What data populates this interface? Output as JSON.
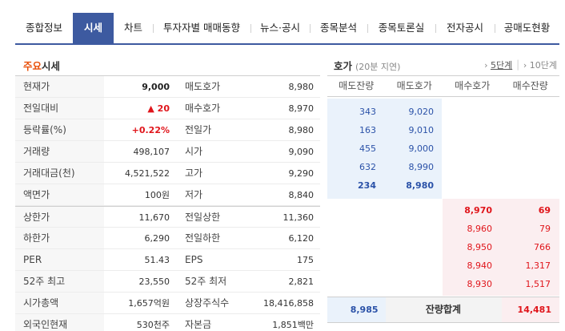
{
  "tabs": [
    {
      "label": "종합정보",
      "active": false
    },
    {
      "label": "시세",
      "active": true
    },
    {
      "label": "차트",
      "active": false
    },
    {
      "label": "투자자별 매매동향",
      "active": false
    },
    {
      "label": "뉴스·공시",
      "active": false
    },
    {
      "label": "종목분석",
      "active": false
    },
    {
      "label": "종목토론실",
      "active": false
    },
    {
      "label": "전자공시",
      "active": false
    },
    {
      "label": "공매도현황",
      "active": false
    }
  ],
  "left": {
    "title_hl": "주요",
    "title_rest": "시세",
    "rows": [
      {
        "l1": "현재가",
        "v1": "9,000",
        "l2": "매도호가",
        "v2": "8,980"
      },
      {
        "l1": "전일대비",
        "v1": "▲ 20",
        "l2": "매수호가",
        "v2": "8,970"
      },
      {
        "l1": "등락률(%)",
        "v1": "+0.22%",
        "l2": "전일가",
        "v2": "8,980"
      },
      {
        "l1": "거래량",
        "v1": "498,107",
        "l2": "시가",
        "v2": "9,090"
      },
      {
        "l1": "거래대금(천)",
        "v1": "4,521,522",
        "l2": "고가",
        "v2": "9,290"
      },
      {
        "l1": "액면가",
        "v1": "100원",
        "l2": "저가",
        "v2": "8,840"
      },
      {
        "l1": "상한가",
        "v1": "11,670",
        "l2": "전일상한",
        "v2": "11,360"
      },
      {
        "l1": "하한가",
        "v1": "6,290",
        "l2": "전일하한",
        "v2": "6,120"
      },
      {
        "l1": "PER",
        "v1": "51.43",
        "l2": "EPS",
        "v2": "175"
      },
      {
        "l1": "52주 최고",
        "v1": "23,550",
        "l2": "52주 최저",
        "v2": "2,821"
      },
      {
        "l1": "시가총액",
        "v1": "1,657억원",
        "l2": "상장주식수",
        "v2": "18,416,858"
      },
      {
        "l1": "외국인현재",
        "v1": "530천주",
        "l2": "자본금",
        "v2": "1,851백만"
      }
    ]
  },
  "orderbook": {
    "title": "호가",
    "subtitle": "(20분 지연)",
    "step5": "5단계",
    "step10": "10단계",
    "headers": [
      "매도잔량",
      "매도호가",
      "매수호가",
      "매수잔량"
    ],
    "asks": [
      {
        "qty": "343",
        "price": "9,020"
      },
      {
        "qty": "163",
        "price": "9,010"
      },
      {
        "qty": "455",
        "price": "9,000"
      },
      {
        "qty": "632",
        "price": "8,990"
      },
      {
        "qty": "234",
        "price": "8,980"
      }
    ],
    "bids": [
      {
        "price": "8,970",
        "qty": "69"
      },
      {
        "price": "8,960",
        "qty": "79"
      },
      {
        "price": "8,950",
        "qty": "766"
      },
      {
        "price": "8,940",
        "qty": "1,317"
      },
      {
        "price": "8,930",
        "qty": "1,517"
      }
    ],
    "total_label": "잔량합계",
    "total_ask": "8,985",
    "total_bid": "14,481"
  }
}
